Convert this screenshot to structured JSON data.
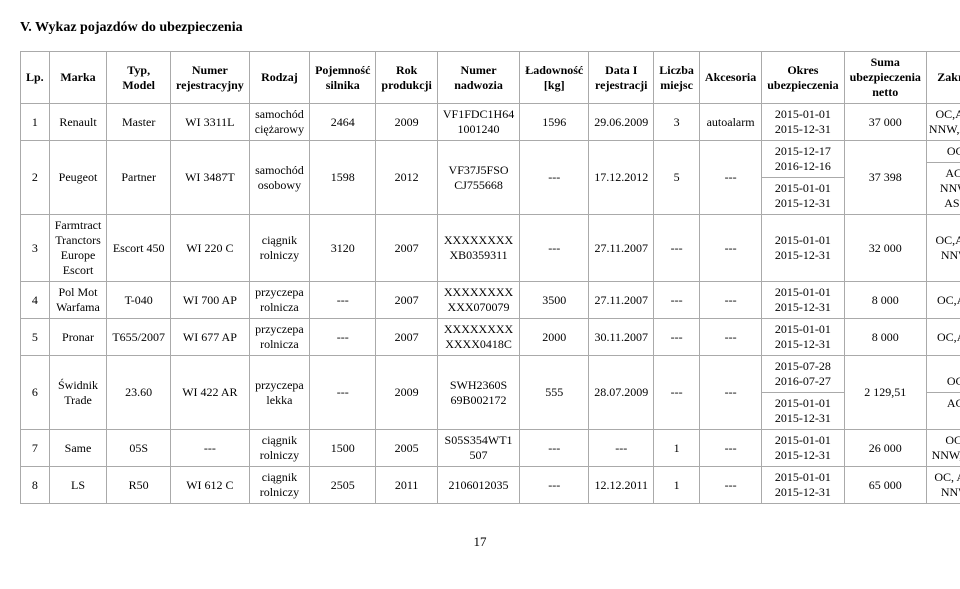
{
  "section_title": "V. Wykaz pojazdów do ubezpieczenia",
  "columns": {
    "lp": "Lp.",
    "marka": "Marka",
    "typ_model": "Typ,\nModel",
    "numer_rejestracyjny": "Numer\nrejestracyjny",
    "rodzaj": "Rodzaj",
    "pojemnosc": "Pojemność\nsilnika",
    "rok": "Rok\nprodukcji",
    "numer_nadwozia": "Numer\nnadwozia",
    "ladownosc": "Ładowność\n[kg]",
    "data_rejestracji": "Data I\nrejestracji",
    "liczba_miejsc": "Liczba\nmiejsc",
    "akcesoria": "Akcesoria",
    "okres": "Okres\nubezpieczenia",
    "suma": "Suma\nubezpieczenia\nnetto",
    "zakres": "Zakres"
  },
  "rows": [
    {
      "lp": "1",
      "marka": "Renault",
      "typ_model": "Master",
      "numer_rejestracyjny": "WI 3311L",
      "rodzaj": "samochód\nciężarowy",
      "pojemnosc": "2464",
      "rok": "2009",
      "numer_nadwozia": "VF1FDC1H64\n1001240",
      "ladownosc": "1596",
      "data_rejestracji": "29.06.2009",
      "liczba_miejsc": "3",
      "akcesoria": "autoalarm",
      "okres": [
        "2015-01-01\n2015-12-31"
      ],
      "suma": "37 000",
      "zakres": [
        "OC,AC,\nNNW,ASS"
      ]
    },
    {
      "lp": "2",
      "marka": "Peugeot",
      "typ_model": "Partner",
      "numer_rejestracyjny": "WI 3487T",
      "rodzaj": "samochód\nosobowy",
      "pojemnosc": "1598",
      "rok": "2012",
      "numer_nadwozia": "VF37J5FSO\nCJ755668",
      "ladownosc": "---",
      "data_rejestracji": "17.12.2012",
      "liczba_miejsc": "5",
      "akcesoria": "---",
      "okres": [
        "2015-12-17\n2016-12-16",
        "2015-01-01\n2015-12-31"
      ],
      "suma": "37 398",
      "zakres": [
        "OC",
        "AC,\nNNW, ASS"
      ]
    },
    {
      "lp": "3",
      "marka": "Farmtract\nTranctors\nEurope\nEscort",
      "typ_model": "Escort 450",
      "numer_rejestracyjny": "WI 220 C",
      "rodzaj": "ciągnik\nrolniczy",
      "pojemnosc": "3120",
      "rok": "2007",
      "numer_nadwozia": "XXXXXXXX\nXB0359311",
      "ladownosc": "---",
      "data_rejestracji": "27.11.2007",
      "liczba_miejsc": "---",
      "akcesoria": "---",
      "okres": [
        "2015-01-01\n2015-12-31"
      ],
      "suma": "32 000",
      "zakres": [
        "OC,AC,\nNNW"
      ]
    },
    {
      "lp": "4",
      "marka": "Pol Mot\nWarfama",
      "typ_model": "T-040",
      "numer_rejestracyjny": "WI 700 AP",
      "rodzaj": "przyczepa\nrolnicza",
      "pojemnosc": "---",
      "rok": "2007",
      "numer_nadwozia": "XXXXXXXX\nXXX070079",
      "ladownosc": "3500",
      "data_rejestracji": "27.11.2007",
      "liczba_miejsc": "---",
      "akcesoria": "---",
      "okres": [
        "2015-01-01\n2015-12-31"
      ],
      "suma": "8 000",
      "zakres": [
        "OC,AC"
      ]
    },
    {
      "lp": "5",
      "marka": "Pronar",
      "typ_model": "T655/2007",
      "numer_rejestracyjny": "WI 677 AP",
      "rodzaj": "przyczepa\nrolnicza",
      "pojemnosc": "---",
      "rok": "2007",
      "numer_nadwozia": "XXXXXXXX\nXXXX0418C",
      "ladownosc": "2000",
      "data_rejestracji": "30.11.2007",
      "liczba_miejsc": "---",
      "akcesoria": "---",
      "okres": [
        "2015-01-01\n2015-12-31"
      ],
      "suma": "8 000",
      "zakres": [
        "OC,AC"
      ]
    },
    {
      "lp": "6",
      "marka": "Świdnik\nTrade",
      "typ_model": "23.60",
      "numer_rejestracyjny": "WI 422 AR",
      "rodzaj": "przyczepa\nlekka",
      "pojemnosc": "---",
      "rok": "2009",
      "numer_nadwozia": "SWH2360S\n69B002172",
      "ladownosc": "555",
      "data_rejestracji": "28.07.2009",
      "liczba_miejsc": "---",
      "akcesoria": "---",
      "okres": [
        "2015-07-28\n2016-07-27",
        "2015-01-01\n2015-12-31"
      ],
      "suma": "2 129,51",
      "zakres": [
        "OC",
        "AC"
      ]
    },
    {
      "lp": "7",
      "marka": "Same",
      "typ_model": "05S",
      "numer_rejestracyjny": "---",
      "rodzaj": "ciągnik\nrolniczy",
      "pojemnosc": "1500",
      "rok": "2005",
      "numer_nadwozia": "S05S354WT1\n507",
      "ladownosc": "---",
      "data_rejestracji": "---",
      "liczba_miejsc": "1",
      "akcesoria": "---",
      "okres": [
        "2015-01-01\n2015-12-31"
      ],
      "suma": "26 000",
      "zakres": [
        "OC,\nNNW,AC"
      ]
    },
    {
      "lp": "8",
      "marka": "LS",
      "typ_model": "R50",
      "numer_rejestracyjny": "WI 612 C",
      "rodzaj": "ciągnik\nrolniczy",
      "pojemnosc": "2505",
      "rok": "2011",
      "numer_nadwozia": "2106012035",
      "ladownosc": "---",
      "data_rejestracji": "12.12.2011",
      "liczba_miejsc": "1",
      "akcesoria": "---",
      "okres": [
        "2015-01-01\n2015-12-31"
      ],
      "suma": "65 000",
      "zakres": [
        "OC, AC,\nNNW"
      ]
    }
  ],
  "page_number": "17"
}
